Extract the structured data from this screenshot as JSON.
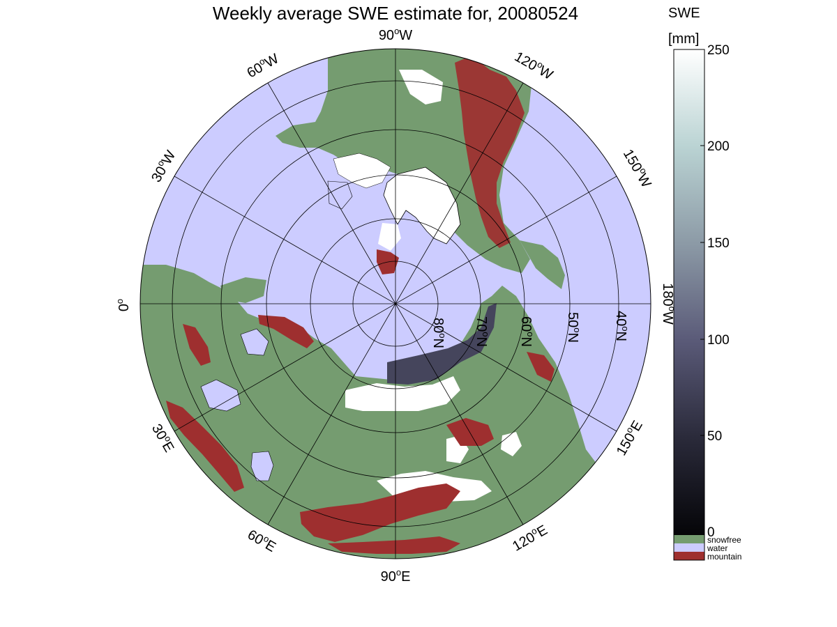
{
  "figure": {
    "title": "Weekly average SWE estimate for, 20080524",
    "projection": "north polar stereographic",
    "colors": {
      "water": "#ccccff",
      "snowfree": "#759c70",
      "mountain": "#9e2f2f",
      "snow_max": "#ffffff",
      "snow_zero": "#050508"
    },
    "longitude_labels": [
      {
        "id": "lon-90w",
        "base": "90",
        "deg": "o",
        "suffix": "W"
      },
      {
        "id": "lon-120w",
        "base": "120",
        "deg": "o",
        "suffix": "W"
      },
      {
        "id": "lon-150w",
        "base": "150",
        "deg": "o",
        "suffix": "W"
      },
      {
        "id": "lon-180w",
        "base": "180",
        "deg": "o",
        "suffix": "W"
      },
      {
        "id": "lon-150e",
        "base": "150",
        "deg": "o",
        "suffix": "E"
      },
      {
        "id": "lon-120e",
        "base": "120",
        "deg": "o",
        "suffix": "E"
      },
      {
        "id": "lon-90e",
        "base": "90",
        "deg": "o",
        "suffix": "E"
      },
      {
        "id": "lon-60e",
        "base": "60",
        "deg": "o",
        "suffix": "E"
      },
      {
        "id": "lon-30e",
        "base": "30",
        "deg": "o",
        "suffix": "E"
      },
      {
        "id": "lon-0",
        "base": "0",
        "deg": "o",
        "suffix": ""
      },
      {
        "id": "lon-30w",
        "base": "30",
        "deg": "o",
        "suffix": "W"
      },
      {
        "id": "lon-60w",
        "base": "60",
        "deg": "o",
        "suffix": "W"
      }
    ],
    "latitude_labels": [
      {
        "id": "lat-80n",
        "base": "80",
        "deg": "o",
        "suffix": "N"
      },
      {
        "id": "lat-70n",
        "base": "70",
        "deg": "o",
        "suffix": "N"
      },
      {
        "id": "lat-60n",
        "base": "60",
        "deg": "o",
        "suffix": "N"
      },
      {
        "id": "lat-50n",
        "base": "50",
        "deg": "o",
        "suffix": "N"
      },
      {
        "id": "lat-40n",
        "base": "40",
        "deg": "o",
        "suffix": "N"
      }
    ],
    "colorbar": {
      "label_line1": "SWE",
      "label_line2": "[mm]",
      "range": [
        0,
        250
      ],
      "ticks": [
        "0",
        "50",
        "100",
        "150",
        "200",
        "250"
      ],
      "categories": [
        {
          "label": "snowfree",
          "color": "#759c70"
        },
        {
          "label": "water",
          "color": "#ccccff"
        },
        {
          "label": "mountain",
          "color": "#9e2f2f"
        }
      ]
    }
  }
}
